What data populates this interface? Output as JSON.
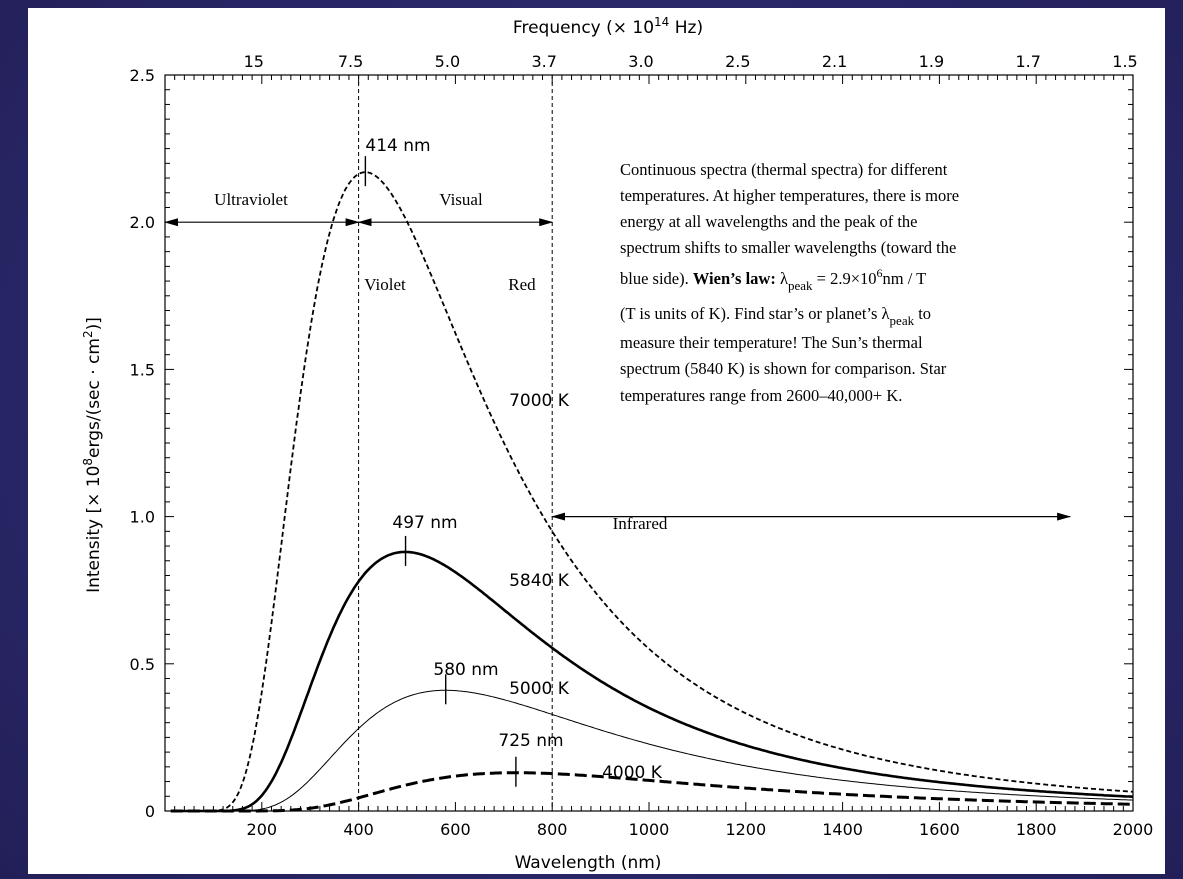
{
  "chart_data": {
    "type": "line",
    "xlabel": "Wavelength (nm)",
    "ylabel_main": "Intensity [× 10",
    "ylabel_sup1": "8",
    "ylabel_mid": "ergs/(sec · cm",
    "ylabel_sup2": "2",
    "ylabel_end": ")]",
    "top_axis_label_main": "Frequency (× 10",
    "top_axis_label_sup": "14",
    "top_axis_label_end": " Hz)",
    "xlim": [
      0,
      2000
    ],
    "ylim": [
      0,
      2.5
    ],
    "x_ticks": [
      200,
      400,
      600,
      800,
      1000,
      1200,
      1400,
      1600,
      1800,
      2000
    ],
    "x_tick_labels": [
      "200",
      "400",
      "600",
      "800",
      "1000",
      "1200",
      "1400",
      "1600",
      "1800",
      "2000"
    ],
    "y_ticks": [
      0,
      0.5,
      1.0,
      1.5,
      2.0,
      2.5
    ],
    "y_tick_labels": [
      "0",
      "0.5",
      "1.0",
      "1.5",
      "2.0",
      "2.5"
    ],
    "top_ticks": [
      {
        "label": "15",
        "x": 200
      },
      {
        "label": "7.5",
        "x": 400
      },
      {
        "label": "5.0",
        "x": 600
      },
      {
        "label": "3.7",
        "x": 800
      },
      {
        "label": "3.0",
        "x": 1000
      },
      {
        "label": "2.5",
        "x": 1200
      },
      {
        "label": "2.1",
        "x": 1400
      },
      {
        "label": "1.9",
        "x": 1600
      },
      {
        "label": "1.7",
        "x": 1800
      },
      {
        "label": "1.5",
        "x": 2000
      }
    ],
    "series": [
      {
        "name": "7000 K",
        "temperature": 7000,
        "peak_nm": 414,
        "peak_label": "414 nm",
        "peak_value": 2.17,
        "style": "dash-fine"
      },
      {
        "name": "5840 K",
        "temperature": 5840,
        "peak_nm": 497,
        "peak_label": "497 nm",
        "peak_value": 0.88,
        "style": "solid"
      },
      {
        "name": "5000 K",
        "temperature": 5000,
        "peak_nm": 580,
        "peak_label": "580 nm",
        "peak_value": 0.41,
        "style": "thin"
      },
      {
        "name": "4000 K",
        "temperature": 4000,
        "peak_nm": 725,
        "peak_label": "725 nm",
        "peak_value": 0.13,
        "style": "dash-heavy"
      }
    ],
    "vertical_markers": [
      400,
      800
    ],
    "regions": [
      {
        "label": "Ultraviolet",
        "from": 0,
        "to": 400,
        "y": 2.0
      },
      {
        "label": "Visual",
        "from": 400,
        "to": 800,
        "y": 2.0
      },
      {
        "label": "Infrared",
        "from": 800,
        "to": 1870,
        "y": 1.0
      }
    ],
    "edge_labels": {
      "violet": "Violet",
      "red": "Red"
    },
    "annotation": {
      "lines": [
        "Continuous spectra (thermal spectra) for different",
        "temperatures. At higher temperatures, there is more",
        "energy at all wavelengths and the peak of the",
        "spectrum shifts to smaller wavelengths (toward the"
      ],
      "line5_pre": "blue side). ",
      "line5_bold": "Wien’s law:",
      "line5_lambda": " λ",
      "line5_sub": "peak",
      "line5_eq": " = 2.9×10",
      "line5_sup": "6",
      "line5_post": "nm / T",
      "line6_pre": "(T is units of K). Find star’s or planet’s λ",
      "line6_sub": "peak",
      "line6_post": " to",
      "line7": "measure their temperature! The Sun’s thermal",
      "line8": "spectrum (5840 K) is shown for comparison. Star",
      "line9": "temperatures range from 2600–40,000+ K."
    },
    "grid": false,
    "legend": "none"
  }
}
